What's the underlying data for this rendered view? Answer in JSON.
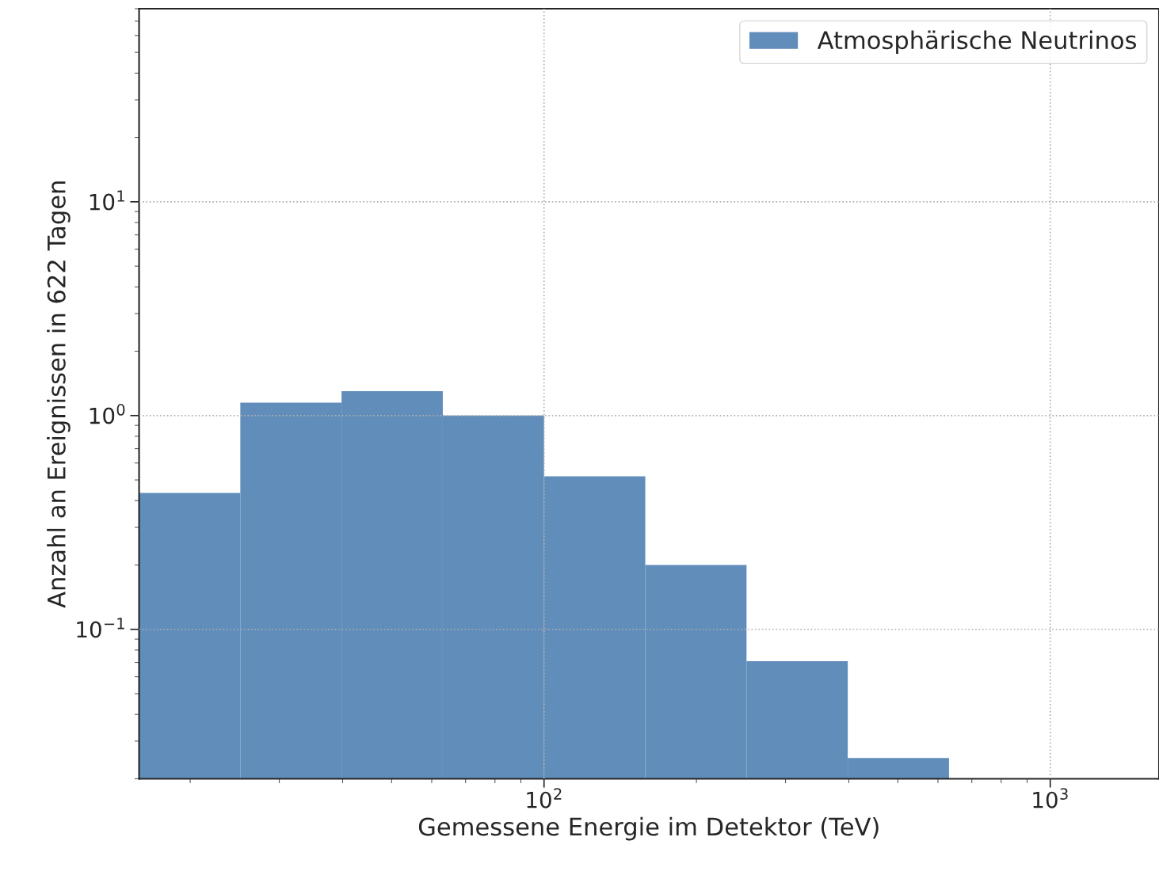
{
  "chart_data": {
    "type": "histogram",
    "xlabel": "Gemessene Energie im Detektor (TeV)",
    "ylabel": "Anzahl an Ereignissen in 622 Tagen",
    "bins": [
      15.85,
      25.12,
      39.81,
      63.1,
      100,
      158.5,
      251.2,
      398.1,
      631.0
    ],
    "series": [
      {
        "name": "Atmosphärische Neutrinos",
        "color": "#608dba",
        "values": [
          0.435,
          1.15,
          1.3,
          1.0,
          0.52,
          0.2,
          0.071,
          0.025
        ]
      }
    ],
    "log": "xy",
    "xlim": [
      15.85,
      1640
    ],
    "ylim": [
      0.02,
      80
    ],
    "xticks": [
      {
        "value": 100,
        "label": "10$^{2}$"
      },
      {
        "value": 1000,
        "label": "10$^{3}$"
      }
    ],
    "yticks": [
      {
        "value": 0.1,
        "label": "10$^{−1}$"
      },
      {
        "value": 1,
        "label": "10$^{0}$"
      },
      {
        "value": 10,
        "label": "10$^{1}$"
      }
    ],
    "grid": true,
    "legend": "top right"
  }
}
